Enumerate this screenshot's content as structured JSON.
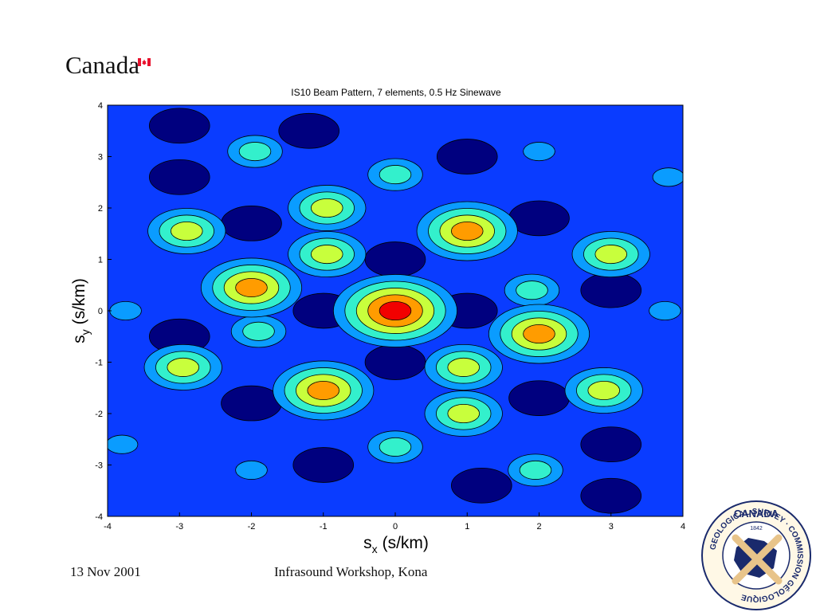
{
  "header": {
    "wordmark": "Canada"
  },
  "footer": {
    "date": "13 Nov 2001",
    "event": "Infrasound Workshop, Kona"
  },
  "seal": {
    "top_text": "CANADA",
    "ring_text": "GEOLOGICAL SURVEY · COMMISSION GÉOLOGIQUE",
    "year": "1842"
  },
  "colors": {
    "level_1": "#00007f",
    "level_2": "#0a3cff",
    "level_3": "#0a9cff",
    "level_4": "#33f0cc",
    "level_5": "#c8ff3c",
    "level_6": "#ff9c00",
    "level_7": "#f20000",
    "contour_line": "#000000"
  },
  "chart_data": {
    "type": "heatmap",
    "title": "IS10 Beam Pattern, 7 elements, 0.5 Hz Sinewave",
    "xlabel_symbol": "s",
    "xlabel_sub": "x",
    "xlabel_unit": "(s/km)",
    "ylabel_symbol": "s",
    "ylabel_sub": "y",
    "ylabel_unit": "(s/km)",
    "xlim": [
      -4,
      4
    ],
    "ylim": [
      -4,
      4
    ],
    "xticks": [
      "-4",
      "-3",
      "-2",
      "-1",
      "0",
      "1",
      "2",
      "3",
      "4"
    ],
    "yticks": [
      "4",
      "3",
      "2",
      "1",
      "0",
      "-1",
      "-2",
      "-3",
      "-4"
    ],
    "contour_levels": 7,
    "peaks": [
      {
        "x": 0.0,
        "y": 0.0,
        "level": 7
      },
      {
        "x": 1.0,
        "y": 1.55,
        "level": 6
      },
      {
        "x": -1.0,
        "y": -1.55,
        "level": 6
      },
      {
        "x": -2.0,
        "y": 0.45,
        "level": 6
      },
      {
        "x": 2.0,
        "y": -0.45,
        "level": 6
      },
      {
        "x": -0.95,
        "y": 2.0,
        "level": 5
      },
      {
        "x": 0.95,
        "y": -2.0,
        "level": 5
      },
      {
        "x": -0.95,
        "y": 1.1,
        "level": 5
      },
      {
        "x": 0.95,
        "y": -1.1,
        "level": 5
      },
      {
        "x": -2.9,
        "y": 1.55,
        "level": 5
      },
      {
        "x": 2.9,
        "y": -1.55,
        "level": 5
      },
      {
        "x": 3.0,
        "y": 1.1,
        "level": 5
      },
      {
        "x": -2.95,
        "y": -1.1,
        "level": 5
      },
      {
        "x": -1.95,
        "y": 3.1,
        "level": 4
      },
      {
        "x": 1.95,
        "y": -3.1,
        "level": 4
      },
      {
        "x": 0.0,
        "y": 2.65,
        "level": 4
      },
      {
        "x": 0.0,
        "y": -2.65,
        "level": 4
      },
      {
        "x": 1.9,
        "y": 0.4,
        "level": 4
      },
      {
        "x": -1.9,
        "y": -0.4,
        "level": 4
      },
      {
        "x": 2.0,
        "y": 3.1,
        "level": 3
      },
      {
        "x": -2.0,
        "y": -3.1,
        "level": 3
      },
      {
        "x": 3.75,
        "y": 0.0,
        "level": 3
      },
      {
        "x": -3.75,
        "y": 0.0,
        "level": 3
      },
      {
        "x": 3.8,
        "y": 2.6,
        "level": 3
      },
      {
        "x": -3.8,
        "y": -2.6,
        "level": 3
      }
    ]
  }
}
